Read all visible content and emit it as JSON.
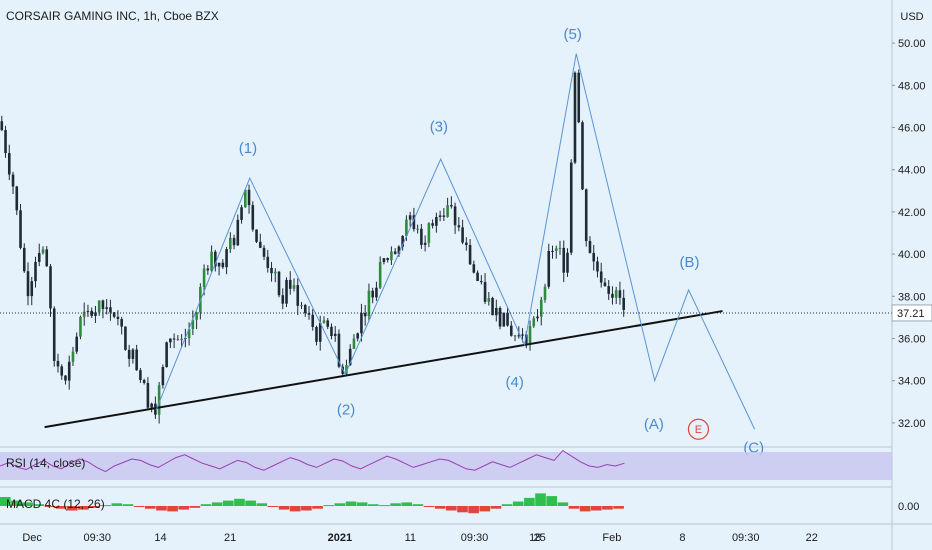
{
  "chart_title": "CORSAIR GAMING INC, 1h, Cboe BZX",
  "currency": "USD",
  "last_price": "37.21",
  "rsi_label": "RSI (14, close)",
  "macd_label": "MACD 4C (12, 26)",
  "macd_zero": "0.00",
  "colors": {
    "background": "#e5f1fb",
    "wave_line": "#5a95d3",
    "wave_label": "#4a8ad1",
    "trendline": "#111111",
    "candle": "#1f2a36",
    "candle_up": "#2e8b3b",
    "rsi_band": "#c8c5f0",
    "rsi_line": "#9a3fb0",
    "macd_pos": "#2fbf4d",
    "macd_neg": "#e0443c",
    "e_marker": "#e0443c"
  },
  "chart_data": {
    "type": "candlestick",
    "title": "CORSAIR GAMING INC, 1h, Cboe BZX",
    "ylim": [
      31.0,
      51.0
    ],
    "yticks": [
      "50.00",
      "48.00",
      "46.00",
      "44.00",
      "42.00",
      "40.00",
      "38.00",
      "36.00",
      "34.00",
      "32.00"
    ],
    "ytick_values": [
      50,
      48,
      46,
      44,
      42,
      40,
      38,
      36,
      34,
      32
    ],
    "xticks": [
      "Dec",
      "09:30",
      "14",
      "21",
      "2021",
      "11",
      "09:30",
      "18",
      "25",
      "Feb",
      "8",
      "09:30",
      "22"
    ],
    "xlim": [
      0,
      100
    ],
    "xtick_positions": [
      3.6,
      10.9,
      18.0,
      25.8,
      38.1,
      46.0,
      53.2,
      60.0,
      60.5,
      68.6,
      76.5,
      83.6,
      91.0
    ],
    "price_path": [
      [
        0,
        46.3
      ],
      [
        1.5,
        43.2
      ],
      [
        3,
        38.2
      ],
      [
        4.5,
        40.5
      ],
      [
        5.2,
        39.8
      ],
      [
        6,
        35.0
      ],
      [
        7.5,
        34.3
      ],
      [
        9,
        36.8
      ],
      [
        10.5,
        37.3
      ],
      [
        12.5,
        37.6
      ],
      [
        14,
        35.8
      ],
      [
        15,
        35.1
      ],
      [
        16.5,
        33.2
      ],
      [
        17.5,
        32.8
      ],
      [
        19,
        36.2
      ],
      [
        20.5,
        35.8
      ],
      [
        22,
        37.2
      ],
      [
        23,
        39.6
      ],
      [
        25,
        39.8
      ],
      [
        26.5,
        40.9
      ],
      [
        27.5,
        43.2
      ],
      [
        29,
        40.2
      ],
      [
        30.5,
        39.3
      ],
      [
        31.5,
        37.8
      ],
      [
        32.5,
        38.7
      ],
      [
        34,
        37.3
      ],
      [
        35.5,
        36.2
      ],
      [
        37,
        36.8
      ],
      [
        38.5,
        34.2
      ],
      [
        40,
        36.5
      ],
      [
        41.5,
        38.1
      ],
      [
        43,
        39.6
      ],
      [
        44.5,
        40.5
      ],
      [
        46,
        41.7
      ],
      [
        47.5,
        40.6
      ],
      [
        49,
        42.3
      ],
      [
        50.5,
        42.1
      ],
      [
        52,
        40.5
      ],
      [
        53,
        39.3
      ],
      [
        54,
        38.2
      ],
      [
        55.5,
        37.3
      ],
      [
        57,
        36.5
      ],
      [
        58.5,
        35.8
      ],
      [
        60,
        36.7
      ],
      [
        61.5,
        39.7
      ],
      [
        62.5,
        40.3
      ],
      [
        63.5,
        39.2
      ],
      [
        64.5,
        49.3
      ],
      [
        65.5,
        41.3
      ],
      [
        66.5,
        39.6
      ],
      [
        67.5,
        38.9
      ],
      [
        68.5,
        38.3
      ],
      [
        69.5,
        37.7
      ],
      [
        70,
        37.4
      ]
    ],
    "wave_path": [
      [
        17.5,
        32.6
      ],
      [
        28.0,
        43.6
      ],
      [
        38.7,
        34.3
      ],
      [
        49.4,
        44.5
      ],
      [
        58.8,
        35.7
      ],
      [
        64.6,
        49.5
      ],
      [
        73.4,
        34.0
      ],
      [
        77.2,
        38.3
      ],
      [
        84.6,
        31.7
      ]
    ],
    "trendline": [
      [
        5,
        31.8
      ],
      [
        81,
        37.3
      ]
    ],
    "wave_labels": [
      {
        "text": "(1)",
        "x": 27.8,
        "y": 44.8
      },
      {
        "text": "(2)",
        "x": 38.8,
        "y": 32.4
      },
      {
        "text": "(3)",
        "x": 49.2,
        "y": 45.8
      },
      {
        "text": "(4)",
        "x": 57.7,
        "y": 33.7
      },
      {
        "text": "(5)",
        "x": 64.2,
        "y": 50.2
      },
      {
        "text": "(A)",
        "x": 73.3,
        "y": 31.7
      },
      {
        "text": "(B)",
        "x": 77.3,
        "y": 39.4
      },
      {
        "text": "(C)",
        "x": 84.5,
        "y": 30.6
      }
    ],
    "e_marker": {
      "text": "E",
      "x": 78.3,
      "y": 31.7
    },
    "rsi": {
      "band": [
        30,
        70
      ],
      "range": [
        0,
        100
      ],
      "values": [
        50,
        55,
        48,
        45,
        52,
        58,
        50,
        46,
        54,
        60,
        56,
        48,
        42,
        50,
        55,
        60,
        58,
        52,
        48,
        55,
        62,
        66,
        60,
        54,
        50,
        46,
        52,
        58,
        55,
        48,
        44,
        50,
        56,
        62,
        58,
        52,
        48,
        54,
        60,
        57,
        50,
        46,
        52,
        58,
        64,
        60,
        54,
        48,
        52,
        56,
        60,
        58,
        52,
        46,
        44,
        50,
        56,
        52,
        48,
        54,
        60,
        66,
        62,
        58,
        72,
        64,
        56,
        50,
        48,
        52,
        50,
        54
      ]
    },
    "macd": {
      "values": [
        1.0,
        0.6,
        0.4,
        0.2,
        -0.1,
        -0.3,
        -0.5,
        -0.4,
        -0.2,
        0.1,
        0.3,
        0.2,
        -0.1,
        -0.3,
        -0.5,
        -0.6,
        -0.4,
        -0.2,
        0.2,
        0.4,
        0.6,
        0.8,
        0.6,
        0.3,
        -0.1,
        -0.4,
        -0.6,
        -0.5,
        -0.3,
        0.1,
        0.3,
        0.5,
        0.4,
        0.2,
        0.1,
        0.3,
        0.4,
        0.2,
        -0.1,
        -0.3,
        -0.5,
        -0.7,
        -0.8,
        -0.6,
        -0.3,
        0.2,
        0.5,
        0.9,
        1.4,
        1.1,
        0.4,
        -0.3,
        -0.6,
        -0.5,
        -0.4,
        -0.3
      ]
    }
  }
}
